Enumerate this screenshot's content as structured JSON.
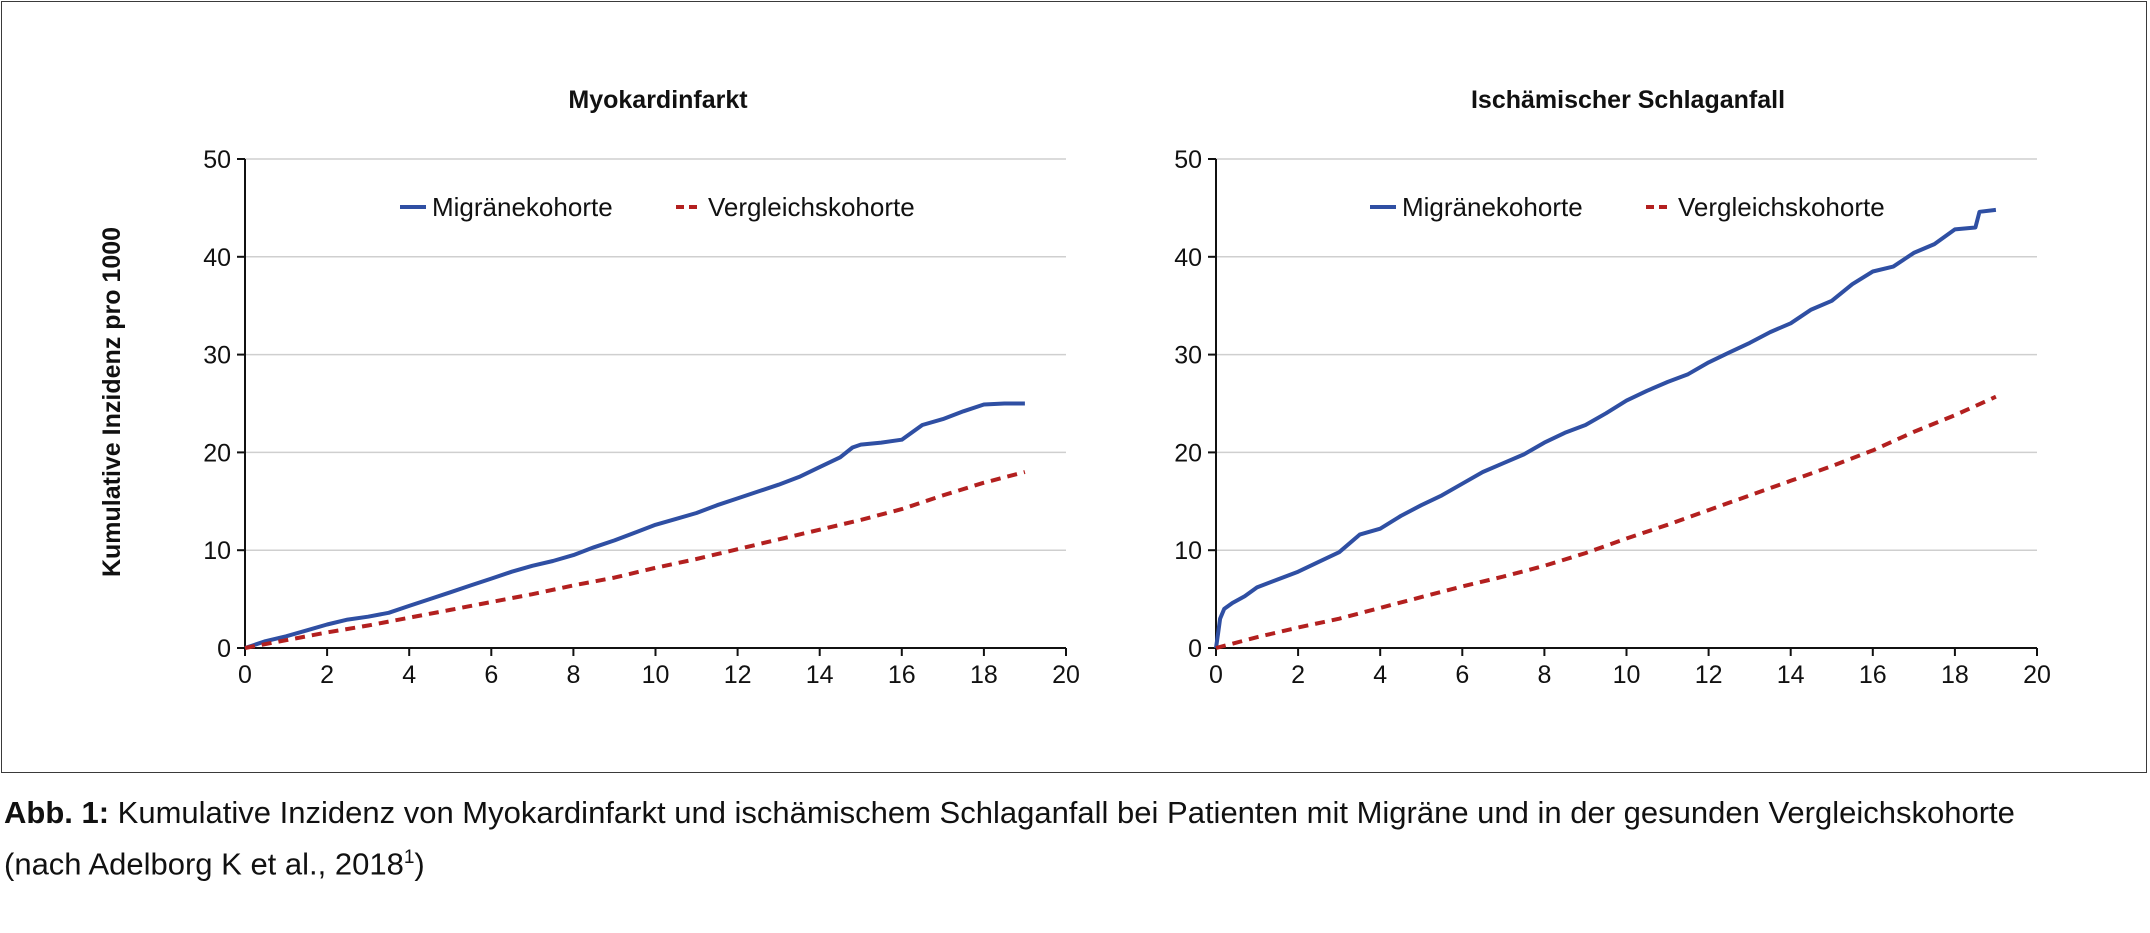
{
  "colors": {
    "migraine": "#2f4fa3",
    "comparison": "#b3201f",
    "grid": "#cfcfcf",
    "axis": "#111111"
  },
  "caption": {
    "label": "Abb. 1:",
    "text": " Kumulative Inzidenz von Myokardinfarkt und ischämischem Schlaganfall bei Patienten mit Migräne und in der gesunden Vergleichskohorte",
    "text2": "(nach Adelborg K et al., 2018",
    "ref": "1",
    "close": ")"
  },
  "chart_data": [
    {
      "type": "line",
      "title": "Myokardinfarkt",
      "ylabel": "Kumulative Inzidenz pro 1000",
      "xlabel": "",
      "xlim": [
        0,
        20
      ],
      "ylim": [
        0,
        50
      ],
      "xticks": [
        0,
        2,
        4,
        6,
        8,
        10,
        12,
        14,
        16,
        18,
        20
      ],
      "yticks": [
        0,
        10,
        20,
        30,
        40,
        50
      ],
      "grid": true,
      "legend_position": "top-center",
      "series": [
        {
          "name": "Migränekohorte",
          "style": "solid",
          "x": [
            0,
            0.5,
            1,
            1.5,
            2,
            2.5,
            3,
            3.5,
            4,
            4.5,
            5,
            5.5,
            6,
            6.5,
            7,
            7.5,
            8,
            8.5,
            9,
            9.5,
            10,
            10.5,
            11,
            11.5,
            12,
            12.5,
            13,
            13.5,
            14,
            14.5,
            14.8,
            15,
            15.5,
            16,
            16.5,
            17,
            17.5,
            18,
            18.5,
            19
          ],
          "y": [
            0,
            0.7,
            1.2,
            1.8,
            2.4,
            2.9,
            3.2,
            3.6,
            4.3,
            5.0,
            5.7,
            6.4,
            7.1,
            7.8,
            8.4,
            8.9,
            9.5,
            10.3,
            11.0,
            11.8,
            12.6,
            13.2,
            13.8,
            14.6,
            15.3,
            16.0,
            16.7,
            17.5,
            18.5,
            19.5,
            20.5,
            20.8,
            21.0,
            21.3,
            22.8,
            23.4,
            24.2,
            24.9,
            25.0,
            25.0
          ]
        },
        {
          "name": "Vergleichskohorte",
          "style": "dashed",
          "x": [
            0,
            1,
            2,
            3,
            4,
            5,
            6,
            7,
            8,
            9,
            10,
            11,
            12,
            13,
            14,
            15,
            16,
            17,
            18,
            19
          ],
          "y": [
            0,
            0.8,
            1.6,
            2.3,
            3.1,
            3.9,
            4.7,
            5.5,
            6.4,
            7.2,
            8.2,
            9.1,
            10.1,
            11.1,
            12.1,
            13.1,
            14.2,
            15.6,
            16.9,
            18.0
          ]
        }
      ]
    },
    {
      "type": "line",
      "title": "Ischämischer Schlaganfall",
      "xlabel": "",
      "ylabel": "",
      "xlim": [
        0,
        20
      ],
      "ylim": [
        0,
        50
      ],
      "xticks": [
        0,
        2,
        4,
        6,
        8,
        10,
        12,
        14,
        16,
        18,
        20
      ],
      "yticks": [
        0,
        10,
        20,
        30,
        40,
        50
      ],
      "grid": true,
      "legend_position": "top-center",
      "series": [
        {
          "name": "Migränekohorte",
          "style": "solid",
          "x": [
            0,
            0.05,
            0.1,
            0.2,
            0.4,
            0.7,
            1,
            1.5,
            2,
            2.5,
            3,
            3.5,
            4,
            4.5,
            5,
            5.5,
            6,
            6.5,
            7,
            7.5,
            8,
            8.5,
            9,
            9.5,
            10,
            10.5,
            11,
            11.5,
            12,
            12.5,
            13,
            13.5,
            14,
            14.5,
            15,
            15.5,
            16,
            16.5,
            17,
            17.5,
            18,
            18.5,
            18.6,
            19
          ],
          "y": [
            0,
            1.5,
            3.0,
            4.0,
            4.6,
            5.3,
            6.2,
            7.0,
            7.8,
            8.8,
            9.8,
            11.6,
            12.2,
            13.5,
            14.6,
            15.6,
            16.8,
            18.0,
            18.9,
            19.8,
            21.0,
            22.0,
            22.8,
            24.0,
            25.3,
            26.3,
            27.2,
            28.0,
            29.2,
            30.2,
            31.2,
            32.3,
            33.2,
            34.6,
            35.5,
            37.2,
            38.5,
            39.0,
            40.4,
            41.3,
            42.8,
            43.0,
            44.6,
            44.8
          ]
        },
        {
          "name": "Vergleichskohorte",
          "style": "dashed",
          "x": [
            0,
            1,
            2,
            3,
            4,
            5,
            6,
            7,
            8,
            9,
            10,
            11,
            12,
            13,
            14,
            15,
            16,
            17,
            18,
            19
          ],
          "y": [
            0,
            1.1,
            2.1,
            3.0,
            4.1,
            5.2,
            6.3,
            7.3,
            8.4,
            9.7,
            11.2,
            12.6,
            14.1,
            15.6,
            17.1,
            18.6,
            20.2,
            22.1,
            23.8,
            25.7
          ]
        }
      ]
    }
  ]
}
